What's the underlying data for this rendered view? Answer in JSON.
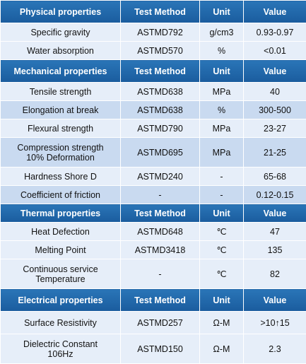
{
  "sections": [
    {
      "header": [
        "Physical properties",
        "Test Method",
        "Unit",
        "Value"
      ],
      "rows": [
        [
          "Specific gravity",
          "ASTMD792",
          "g/cm3",
          "0.93-0.97"
        ],
        [
          "Water absorption",
          "ASTMD570",
          "%",
          "<0.01"
        ]
      ]
    },
    {
      "header": [
        "Mechanical properties",
        "Test Method",
        "Unit",
        "Value"
      ],
      "rows": [
        [
          "Tensile strength",
          "ASTMD638",
          "MPa",
          "40"
        ],
        [
          "Elongation at break",
          "ASTMD638",
          "%",
          "300-500"
        ],
        [
          "Flexural strength",
          "ASTMD790",
          "MPa",
          "23-27"
        ],
        [
          "Compression strength\n10% Deformation",
          "ASTMD695",
          "MPa",
          "21-25"
        ],
        [
          "Hardness Shore D",
          "ASTMD240",
          "-",
          "65-68"
        ],
        [
          "Coefficient of friction",
          "-",
          "-",
          "0.12-0.15"
        ]
      ]
    },
    {
      "header": [
        "Thermal properties",
        "Test Method",
        "Unit",
        "Value"
      ],
      "rows": [
        [
          "Heat Defection",
          "ASTMD648",
          "℃",
          "47"
        ],
        [
          "Melting Point",
          "ASTMD3418",
          "℃",
          "135"
        ],
        [
          "Continuous service\nTemperature",
          "-",
          "℃",
          "82"
        ]
      ]
    },
    {
      "header": [
        "Electrical properties",
        "Test Method",
        "Unit",
        "Value"
      ],
      "rows": [
        [
          "Surface Resistivity",
          "ASTMD257",
          "Ω-M",
          ">10↑15"
        ],
        [
          "Dielectric Constant\n106Hz",
          "ASTMD150",
          "Ω-M",
          "2.3"
        ]
      ]
    }
  ]
}
